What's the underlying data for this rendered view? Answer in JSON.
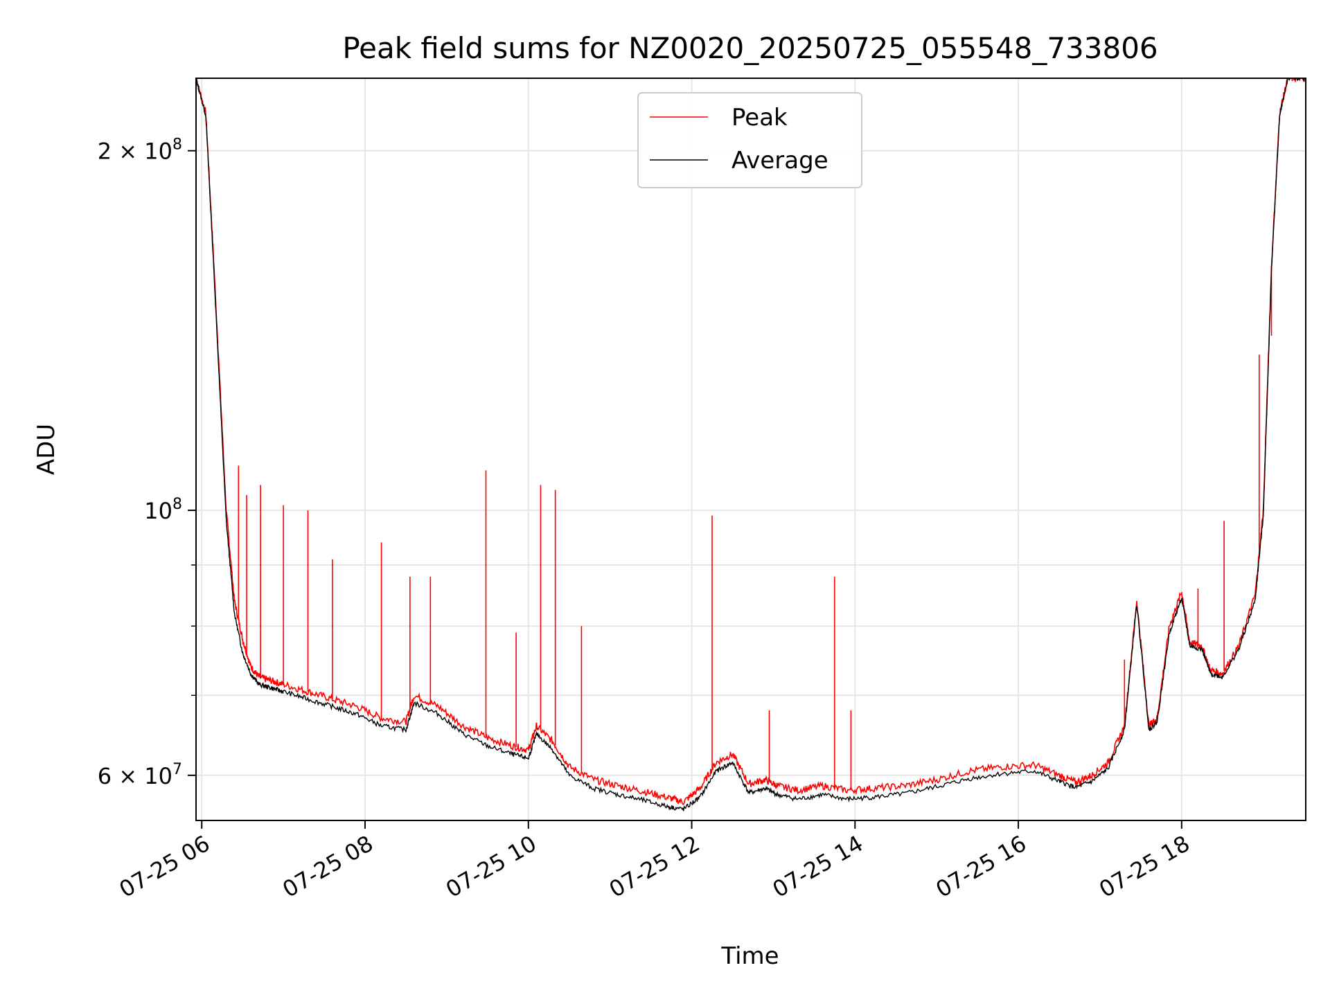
{
  "chart_data": {
    "type": "line",
    "title": "Peak field sums for NZ0020_20250725_055548_733806",
    "xlabel": "Time",
    "ylabel": "ADU",
    "yscale": "log",
    "xlim": [
      5.93,
      19.52
    ],
    "ylim": [
      55000000,
      230000000
    ],
    "x_ticks": [
      {
        "value": 6,
        "label": "07-25 06"
      },
      {
        "value": 8,
        "label": "07-25 08"
      },
      {
        "value": 10,
        "label": "07-25 10"
      },
      {
        "value": 12,
        "label": "07-25 12"
      },
      {
        "value": 14,
        "label": "07-25 14"
      },
      {
        "value": 16,
        "label": "07-25 16"
      },
      {
        "value": 18,
        "label": "07-25 18"
      }
    ],
    "y_major_ticks": [
      {
        "value": 60000000,
        "mantissa": "6",
        "exp": "7"
      },
      {
        "value": 100000000,
        "mantissa": "",
        "exp": "8"
      },
      {
        "value": 200000000,
        "mantissa": "2",
        "exp": "8"
      }
    ],
    "y_minor_ticks": [
      70000000,
      80000000,
      90000000
    ],
    "grid": true,
    "legend_position": "upper-center",
    "series": [
      {
        "name": "Peak",
        "color": "#ff0000",
        "x": [
          5.93,
          6.05,
          6.15,
          6.3,
          6.4,
          6.5,
          6.6,
          6.7,
          6.85,
          7.0,
          7.3,
          7.6,
          7.9,
          8.2,
          8.5,
          8.6,
          8.9,
          9.2,
          9.5,
          9.8,
          10.0,
          10.1,
          10.3,
          10.5,
          10.8,
          11.1,
          11.4,
          11.7,
          11.9,
          12.1,
          12.3,
          12.5,
          12.7,
          12.9,
          13.05,
          13.3,
          13.6,
          13.9,
          14.2,
          14.6,
          15.0,
          15.4,
          15.8,
          16.2,
          16.5,
          16.7,
          16.9,
          17.1,
          17.3,
          17.45,
          17.6,
          17.7,
          17.85,
          18.0,
          18.1,
          18.25,
          18.35,
          18.5,
          18.7,
          18.9,
          19.0,
          19.1,
          19.2,
          19.3,
          19.52
        ],
        "y": [
          230000000,
          215000000,
          160000000,
          100000000,
          84000000,
          78000000,
          74000000,
          72500000,
          72000000,
          71500000,
          70500000,
          69500000,
          68500000,
          67000000,
          66500000,
          70000000,
          68500000,
          66000000,
          64500000,
          63500000,
          63000000,
          66000000,
          64000000,
          61000000,
          59500000,
          58800000,
          58200000,
          57500000,
          57000000,
          58500000,
          61500000,
          62500000,
          59000000,
          59500000,
          58800000,
          58300000,
          58800000,
          58300000,
          58500000,
          58800000,
          59500000,
          60500000,
          61000000,
          61200000,
          60000000,
          59200000,
          60000000,
          61500000,
          66000000,
          84000000,
          66000000,
          67000000,
          80000000,
          85500000,
          77500000,
          77000000,
          73500000,
          73000000,
          77000000,
          85000000,
          100000000,
          160000000,
          215000000,
          230000000,
          230000000
        ]
      },
      {
        "name": "Average",
        "color": "#000000",
        "x": [
          5.93,
          6.05,
          6.15,
          6.3,
          6.4,
          6.5,
          6.6,
          6.7,
          6.85,
          7.0,
          7.3,
          7.6,
          7.9,
          8.2,
          8.5,
          8.6,
          8.9,
          9.2,
          9.5,
          9.8,
          10.0,
          10.1,
          10.3,
          10.5,
          10.8,
          11.1,
          11.4,
          11.7,
          11.9,
          12.1,
          12.3,
          12.5,
          12.7,
          12.9,
          13.05,
          13.3,
          13.6,
          13.9,
          14.2,
          14.6,
          15.0,
          15.4,
          15.8,
          16.2,
          16.5,
          16.7,
          16.9,
          17.1,
          17.3,
          17.45,
          17.6,
          17.7,
          17.85,
          18.0,
          18.1,
          18.25,
          18.35,
          18.5,
          18.7,
          18.9,
          19.0,
          19.1,
          19.2,
          19.3,
          19.52
        ],
        "y": [
          230000000,
          214000000,
          158000000,
          98000000,
          82000000,
          76000000,
          73000000,
          71500000,
          71000000,
          70500000,
          69500000,
          68500000,
          67500000,
          66000000,
          65500000,
          69000000,
          67500000,
          65000000,
          63500000,
          62500000,
          62000000,
          65000000,
          63000000,
          60000000,
          58500000,
          57800000,
          57200000,
          56500000,
          56200000,
          57500000,
          60500000,
          61500000,
          58000000,
          58500000,
          57800000,
          57300000,
          57800000,
          57300000,
          57500000,
          57900000,
          58700000,
          59600000,
          60200000,
          60500000,
          59300000,
          58600000,
          59300000,
          60800000,
          65500000,
          83500000,
          65500000,
          66500000,
          79000000,
          84500000,
          77000000,
          76500000,
          73000000,
          72500000,
          76500000,
          84000000,
          99000000,
          159000000,
          214000000,
          230000000,
          230000000
        ]
      }
    ],
    "spikes": [
      {
        "x": 6.45,
        "y": 109000000
      },
      {
        "x": 6.55,
        "y": 103000000
      },
      {
        "x": 6.72,
        "y": 105000000
      },
      {
        "x": 7.0,
        "y": 101000000
      },
      {
        "x": 7.3,
        "y": 100000000
      },
      {
        "x": 7.6,
        "y": 91000000
      },
      {
        "x": 8.2,
        "y": 94000000
      },
      {
        "x": 8.55,
        "y": 88000000
      },
      {
        "x": 8.8,
        "y": 88000000
      },
      {
        "x": 9.48,
        "y": 108000000
      },
      {
        "x": 9.85,
        "y": 79000000
      },
      {
        "x": 10.15,
        "y": 105000000
      },
      {
        "x": 10.33,
        "y": 104000000
      },
      {
        "x": 10.65,
        "y": 80000000
      },
      {
        "x": 12.25,
        "y": 99000000
      },
      {
        "x": 12.95,
        "y": 68000000
      },
      {
        "x": 13.75,
        "y": 88000000
      },
      {
        "x": 13.95,
        "y": 68000000
      },
      {
        "x": 17.3,
        "y": 75000000
      },
      {
        "x": 18.2,
        "y": 86000000
      },
      {
        "x": 18.52,
        "y": 98000000
      },
      {
        "x": 18.95,
        "y": 135000000
      },
      {
        "x": 19.1,
        "y": 140000000
      }
    ]
  }
}
